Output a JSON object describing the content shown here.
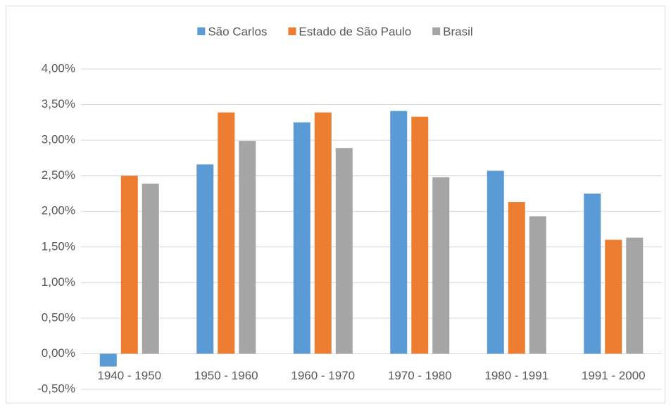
{
  "chart_data": {
    "type": "bar",
    "categories": [
      "1940 - 1950",
      "1950 - 1960",
      "1960 - 1970",
      "1970 - 1980",
      "1980 - 1991",
      "1991 - 2000"
    ],
    "series": [
      {
        "name": "São Carlos",
        "color": "#5b9bd5",
        "values": [
          -0.18,
          2.66,
          3.25,
          3.41,
          2.57,
          2.25
        ]
      },
      {
        "name": "Estado de São Paulo",
        "color": "#ed7d31",
        "values": [
          2.5,
          3.39,
          3.39,
          3.33,
          2.13,
          1.6
        ]
      },
      {
        "name": "Brasil",
        "color": "#a5a5a5",
        "values": [
          2.39,
          2.99,
          2.89,
          2.48,
          1.93,
          1.63
        ]
      }
    ],
    "ylim": [
      -0.5,
      4
    ],
    "yticks": [
      {
        "value": -0.5,
        "label": "-0,50%"
      },
      {
        "value": 0,
        "label": "0,00%"
      },
      {
        "value": 0.5,
        "label": "0,50%"
      },
      {
        "value": 1,
        "label": "1,00%"
      },
      {
        "value": 1.5,
        "label": "1,50%"
      },
      {
        "value": 2,
        "label": "2,00%"
      },
      {
        "value": 2.5,
        "label": "2,50%"
      },
      {
        "value": 3,
        "label": "3,00%"
      },
      {
        "value": 3.5,
        "label": "3,50%"
      },
      {
        "value": 4,
        "label": "4,00%"
      }
    ],
    "grid": true,
    "legend": "top"
  }
}
